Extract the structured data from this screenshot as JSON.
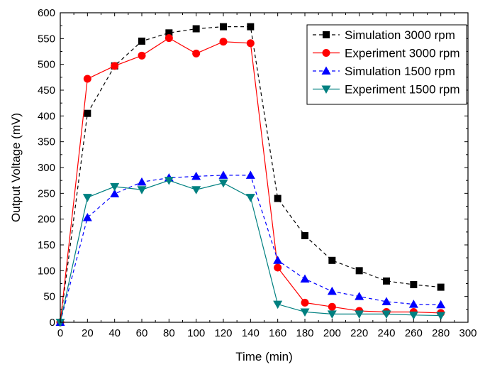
{
  "chart_data": {
    "type": "line",
    "title": "",
    "xlabel": "Time (min)",
    "ylabel": "Output Voltage (mV)",
    "xlim": [
      0,
      300
    ],
    "ylim": [
      0,
      600
    ],
    "xticks": [
      0,
      20,
      40,
      60,
      80,
      100,
      120,
      140,
      160,
      180,
      200,
      220,
      240,
      260,
      280,
      300
    ],
    "yticks": [
      0,
      50,
      100,
      150,
      200,
      250,
      300,
      350,
      400,
      450,
      500,
      550,
      600
    ],
    "grid": false,
    "legend_position": "top-right",
    "x": [
      0,
      20,
      40,
      60,
      80,
      100,
      120,
      140,
      160,
      180,
      200,
      220,
      240,
      260,
      280
    ],
    "series": [
      {
        "name": "Simulation 3000 rpm",
        "color": "#000000",
        "line_style": "dashed",
        "marker": "square",
        "values": [
          0,
          405,
          497,
          545,
          561,
          569,
          573,
          573,
          240,
          168,
          120,
          100,
          80,
          73,
          68
        ]
      },
      {
        "name": "Experiment 3000 rpm",
        "color": "#ff0000",
        "line_style": "solid",
        "marker": "circle",
        "values": [
          0,
          472,
          497,
          517,
          551,
          521,
          544,
          541,
          106,
          38,
          30,
          22,
          20,
          20,
          18
        ]
      },
      {
        "name": "Simulation 1500 rpm",
        "color": "#0000ff",
        "line_style": "dashed",
        "marker": "triangle-up",
        "values": [
          0,
          203,
          249,
          272,
          280,
          283,
          285,
          285,
          120,
          84,
          60,
          50,
          40,
          35,
          34
        ]
      },
      {
        "name": "Experiment 1500 rpm",
        "color": "#008080",
        "line_style": "solid",
        "marker": "triangle-down",
        "values": [
          0,
          242,
          263,
          257,
          275,
          257,
          270,
          242,
          35,
          20,
          16,
          16,
          16,
          14,
          13
        ]
      }
    ]
  }
}
